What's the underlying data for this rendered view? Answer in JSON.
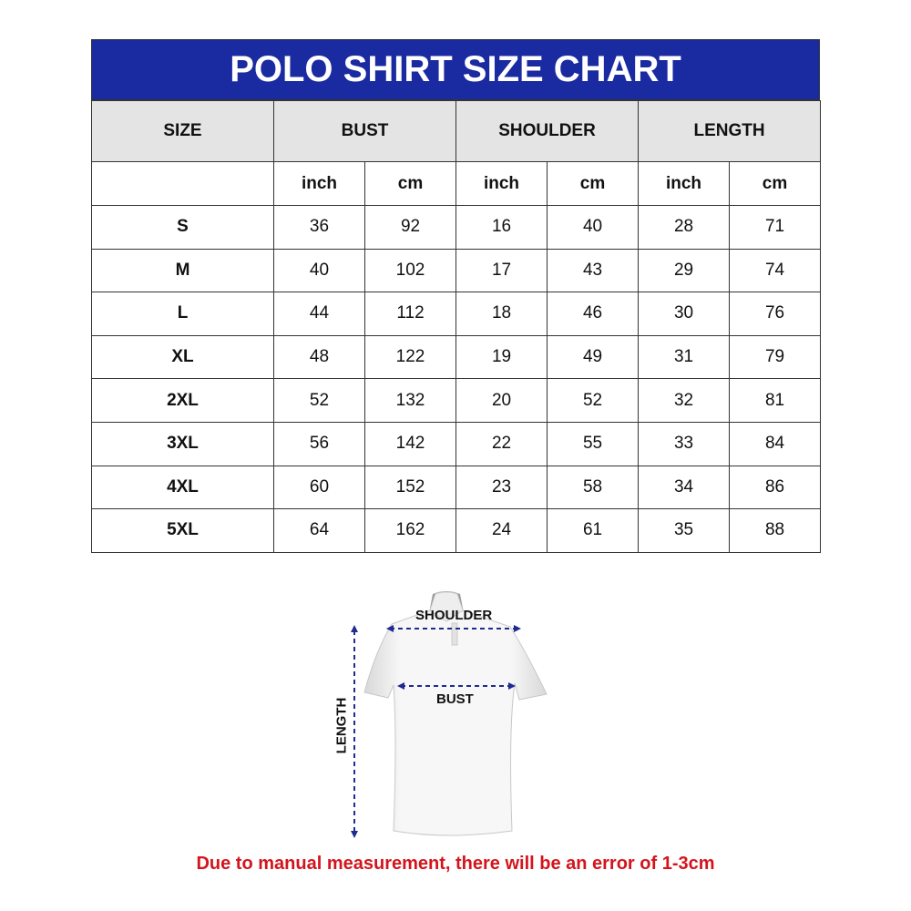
{
  "title": "POLO SHIRT SIZE CHART",
  "headers": [
    "SIZE",
    "BUST",
    "SHOULDER",
    "LENGTH"
  ],
  "units": [
    "inch",
    "cm",
    "inch",
    "cm",
    "inch",
    "cm"
  ],
  "rows": [
    [
      "S",
      "36",
      "92",
      "16",
      "40",
      "28",
      "71"
    ],
    [
      "M",
      "40",
      "102",
      "17",
      "43",
      "29",
      "74"
    ],
    [
      "L",
      "44",
      "112",
      "18",
      "46",
      "30",
      "76"
    ],
    [
      "XL",
      "48",
      "122",
      "19",
      "49",
      "31",
      "79"
    ],
    [
      "2XL",
      "52",
      "132",
      "20",
      "52",
      "32",
      "81"
    ],
    [
      "3XL",
      "56",
      "142",
      "22",
      "55",
      "33",
      "84"
    ],
    [
      "4XL",
      "60",
      "152",
      "23",
      "58",
      "34",
      "86"
    ],
    [
      "5XL",
      "64",
      "162",
      "24",
      "61",
      "35",
      "88"
    ]
  ],
  "diagram": {
    "shoulder": "SHOULDER",
    "bust": "BUST",
    "length": "LENGTH"
  },
  "note": "Due to manual measurement, there will be an error of 1-3cm",
  "colors": {
    "header": "#1a2aa0",
    "note": "#d4141c",
    "arrows": "#1e2b8f"
  }
}
